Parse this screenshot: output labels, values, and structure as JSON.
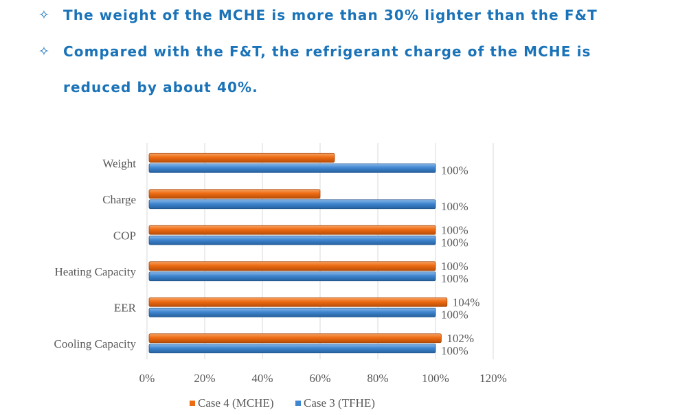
{
  "bullets": [
    {
      "marker": "✧",
      "text": "The weight of the MCHE is more than 30% lighter than the F&T"
    },
    {
      "marker": "✧",
      "text": "Compared with the F&T, the refrigerant charge of the MCHE is reduced by about 40%."
    }
  ],
  "colors": {
    "text_blue": "#1a73b8",
    "series_orange": "#ed6b12",
    "series_blue": "#3f86d0",
    "grid": "#d9d9d9",
    "axis_text": "#595959"
  },
  "chart_data": {
    "type": "bar",
    "orientation": "horizontal",
    "categories": [
      "Weight",
      "Charge",
      "COP",
      "Heating Capacity",
      "EER",
      "Cooling Capacity"
    ],
    "series": [
      {
        "name": "Case 4 (MCHE)",
        "color": "#ed6b12",
        "values": [
          65,
          60,
          100,
          100,
          104,
          102
        ],
        "labels": [
          "",
          "",
          "100%",
          "100%",
          "104%",
          "102%"
        ]
      },
      {
        "name": "Case 3 (TFHE)",
        "color": "#3f86d0",
        "values": [
          100,
          100,
          100,
          100,
          100,
          100
        ],
        "labels": [
          "100%",
          "100%",
          "100%",
          "100%",
          "100%",
          "100%"
        ]
      }
    ],
    "xticks": [
      "0%",
      "20%",
      "40%",
      "60%",
      "80%",
      "100%",
      "120%"
    ],
    "xlim": [
      0,
      120
    ],
    "grid": true,
    "legend": "bottom"
  }
}
